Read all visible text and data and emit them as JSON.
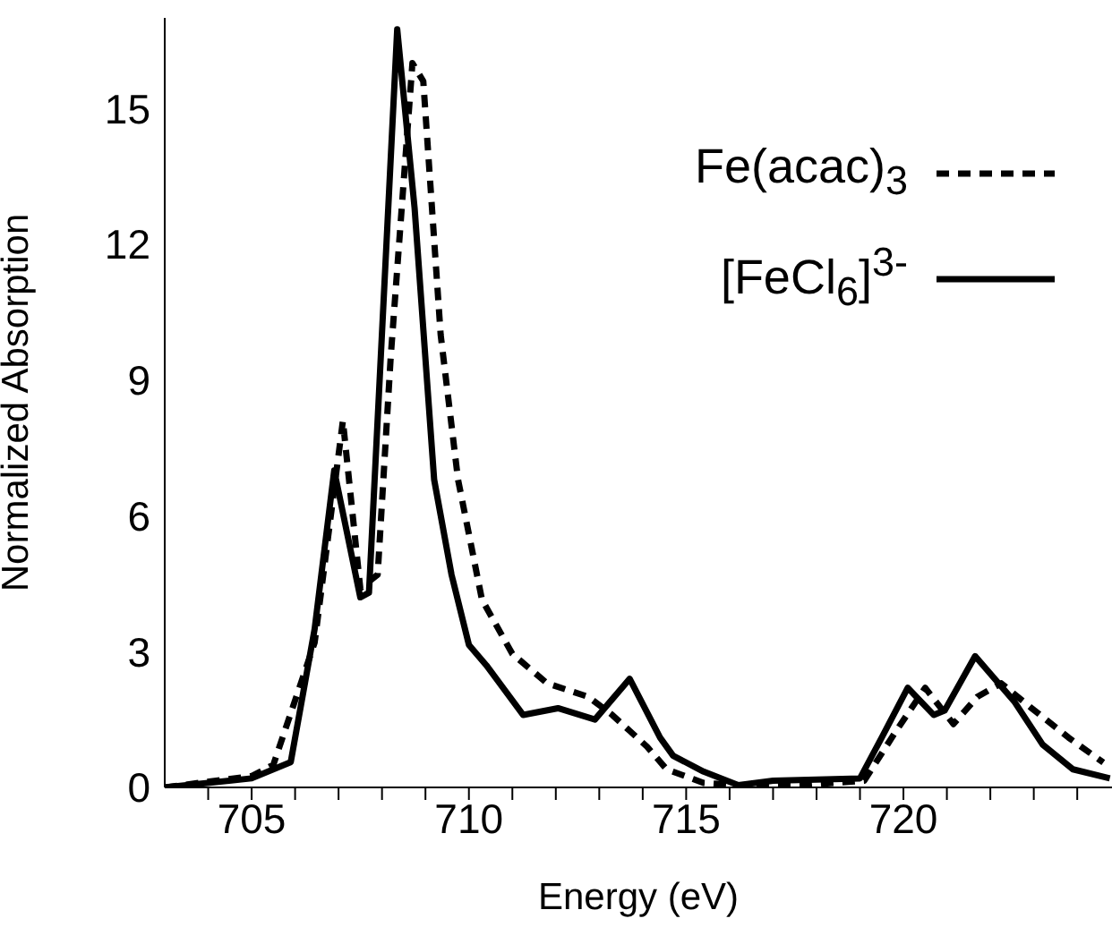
{
  "chart_data": {
    "type": "line",
    "xlabel": "Energy (eV)",
    "ylabel": "Normalized Absorption",
    "xlim": [
      703,
      724.8
    ],
    "xticks": [
      {
        "value": 704,
        "label": null
      },
      705,
      {
        "value": 706,
        "label": null
      },
      {
        "value": 707,
        "label": null
      },
      {
        "value": 708,
        "label": null
      },
      {
        "value": 709,
        "label": null
      },
      710,
      {
        "value": 711,
        "label": null
      },
      {
        "value": 712,
        "label": null
      },
      {
        "value": 713,
        "label": null
      },
      {
        "value": 714,
        "label": null
      },
      715,
      {
        "value": 716,
        "label": null
      },
      {
        "value": 717,
        "label": null
      },
      {
        "value": 718,
        "label": null
      },
      {
        "value": 719,
        "label": null
      },
      720,
      {
        "value": 721,
        "label": null
      },
      {
        "value": 722,
        "label": null
      },
      {
        "value": 723,
        "label": null
      },
      {
        "value": 724,
        "label": null
      }
    ],
    "ylim": [
      0,
      17
    ],
    "yticks": [
      0,
      3,
      6,
      9,
      12,
      15
    ],
    "legend": "top right",
    "marker": "none",
    "series": [
      {
        "name": "Fe(acac)$_{3}$",
        "color": "#000000",
        "line_style": "dashed",
        "x": [
          703,
          705,
          705.5,
          706.45,
          707.1,
          707.5,
          707.9,
          708.2,
          708.7,
          708.95,
          709.35,
          709.75,
          710.3,
          711.0,
          711.8,
          712.75,
          713.3,
          713.7,
          714.1,
          714.55,
          715.4,
          716.2,
          717.7,
          719.1,
          719.8,
          720.5,
          721.15,
          721.7,
          722.25,
          722.95,
          723.8,
          724.6
        ],
        "values": [
          0,
          0.25,
          0.5,
          3.2,
          8.1,
          4.4,
          4.7,
          9.5,
          16.0,
          15.6,
          10.0,
          6.8,
          4.15,
          2.95,
          2.3,
          2.0,
          1.6,
          1.25,
          0.9,
          0.4,
          0.1,
          0.05,
          0.05,
          0.15,
          1.2,
          2.2,
          1.4,
          2.0,
          2.3,
          1.75,
          1.1,
          0.55
        ]
      },
      {
        "name": "[FeCl$_{6}$]$^{3-}$",
        "color": "#000000",
        "line_style": "solid",
        "x": [
          703,
          705,
          705.5,
          705.9,
          706.45,
          706.9,
          707.5,
          707.7,
          708.35,
          708.75,
          709.2,
          709.6,
          710.0,
          710.4,
          711.25,
          712.05,
          712.9,
          713.7,
          714.4,
          714.7,
          715.4,
          716.2,
          717.0,
          719.0,
          719.5,
          720.1,
          720.7,
          720.95,
          721.65,
          722.55,
          723.2,
          723.9,
          724.75
        ],
        "values": [
          0,
          0.2,
          0.4,
          0.56,
          3.5,
          7.0,
          4.2,
          4.3,
          16.75,
          12.8,
          6.8,
          4.7,
          3.15,
          2.7,
          1.6,
          1.75,
          1.5,
          2.4,
          1.1,
          0.7,
          0.35,
          0.05,
          0.15,
          0.2,
          1.1,
          2.2,
          1.6,
          1.7,
          2.9,
          1.9,
          0.95,
          0.4,
          0.2
        ]
      }
    ]
  }
}
